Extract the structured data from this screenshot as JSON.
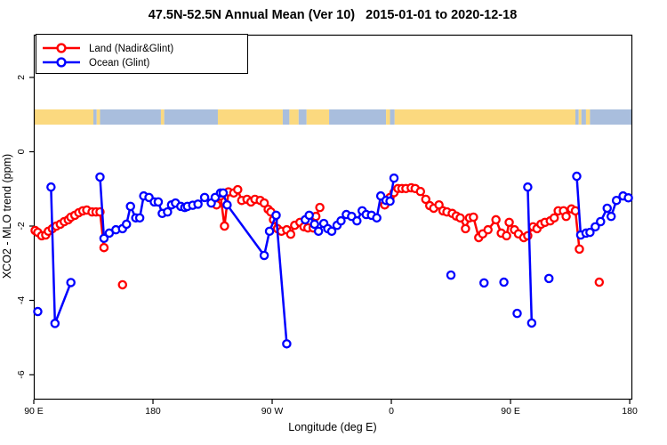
{
  "chart_data": {
    "type": "line",
    "title": "47.5N-52.5N Annual Mean (Ver 10)   2015-01-01 to 2020-12-18",
    "xlabel": "Longitude (deg E)",
    "ylabel": "XCO2 - MLO trend (ppm)",
    "grid": false,
    "x_axis": {
      "tick_values": [
        90,
        180,
        270,
        360,
        450,
        540
      ],
      "tick_labels": [
        "90 E",
        "180",
        "90 W",
        "0",
        "90 E",
        "180"
      ],
      "range": [
        90,
        541.3
      ],
      "note": "longitude axis wraps eastward: 90E to 180 to 90W to 0 to 90E to 180"
    },
    "y_axis": {
      "tick_values": [
        2,
        0,
        -2,
        -4,
        -6
      ],
      "tick_labels": [
        "2",
        "0",
        "-2",
        "-4",
        "-6"
      ],
      "range": [
        -6.65,
        3.15
      ]
    },
    "legend": {
      "position": "top-left",
      "items": [
        {
          "label": "Land (Nadir&Glint)",
          "color": "#ff0000"
        },
        {
          "label": "Ocean (Glint)",
          "color": "#0000ff"
        }
      ]
    },
    "map_band": {
      "value_top": 1.14,
      "value_bottom": 0.73,
      "land_color": "#fbd97f",
      "ocean_color": "#a9bedd",
      "segments": [
        [
          90,
          135,
          "land"
        ],
        [
          135,
          137.5,
          "ocean"
        ],
        [
          137.5,
          140,
          "land"
        ],
        [
          140,
          186,
          "ocean"
        ],
        [
          186,
          188.5,
          "land"
        ],
        [
          188.5,
          229,
          "ocean"
        ],
        [
          229,
          278,
          "land"
        ],
        [
          278,
          283,
          "ocean"
        ],
        [
          283,
          290,
          "land"
        ],
        [
          290,
          296,
          "ocean"
        ],
        [
          296,
          313,
          "land"
        ],
        [
          313,
          356,
          "ocean"
        ],
        [
          356,
          359,
          "land"
        ],
        [
          359,
          362.5,
          "ocean"
        ],
        [
          362.5,
          499,
          "land"
        ],
        [
          499,
          501.5,
          "ocean"
        ],
        [
          501.5,
          503.5,
          "land"
        ],
        [
          503.5,
          507,
          "ocean"
        ],
        [
          507,
          510,
          "land"
        ],
        [
          510,
          541.3,
          "ocean"
        ]
      ]
    },
    "series": [
      {
        "name": "Land (Nadir&Glint)",
        "color": "#ff0000",
        "segments": [
          [
            [
              91,
              -2.12
            ],
            [
              93,
              -2.17
            ],
            [
              96,
              -2.26
            ],
            [
              99,
              -2.24
            ],
            [
              101,
              -2.14
            ],
            [
              104,
              -2.07
            ],
            [
              107,
              -2.0
            ],
            [
              110,
              -1.95
            ],
            [
              113,
              -1.88
            ],
            [
              116,
              -1.83
            ],
            [
              118,
              -1.76
            ],
            [
              121,
              -1.71
            ],
            [
              124,
              -1.64
            ],
            [
              127,
              -1.59
            ],
            [
              130,
              -1.57
            ],
            [
              134,
              -1.62
            ],
            [
              137,
              -1.62
            ],
            [
              140,
              -1.62
            ],
            [
              143,
              -2.58
            ]
          ],
          [
            [
              228,
              -1.43
            ],
            [
              231,
              -1.19
            ],
            [
              234,
              -2.0
            ],
            [
              237,
              -1.08
            ],
            [
              241,
              -1.11
            ],
            [
              244,
              -1.02
            ],
            [
              247,
              -1.31
            ],
            [
              251,
              -1.28
            ],
            [
              254,
              -1.35
            ],
            [
              257,
              -1.28
            ],
            [
              261,
              -1.31
            ],
            [
              264,
              -1.38
            ],
            [
              267,
              -1.55
            ],
            [
              269,
              -1.62
            ],
            [
              271,
              -1.83
            ],
            [
              274,
              -2.07
            ],
            [
              277,
              -2.14
            ],
            [
              281,
              -2.1
            ],
            [
              284,
              -2.22
            ],
            [
              287,
              -1.98
            ],
            [
              291,
              -1.9
            ],
            [
              294,
              -2.02
            ],
            [
              297,
              -2.05
            ],
            [
              301,
              -2.05
            ],
            [
              303,
              -1.74
            ],
            [
              306,
              -1.5
            ]
          ],
          [
            [
              355,
              -1.43
            ],
            [
              359,
              -1.23
            ],
            [
              362,
              -1.1
            ],
            [
              365,
              -0.99
            ],
            [
              368,
              -0.99
            ],
            [
              371,
              -0.99
            ],
            [
              375,
              -0.97
            ],
            [
              378,
              -0.99
            ],
            [
              382,
              -1.07
            ],
            [
              386,
              -1.28
            ],
            [
              389,
              -1.45
            ],
            [
              392,
              -1.52
            ],
            [
              396,
              -1.43
            ],
            [
              399,
              -1.59
            ],
            [
              402,
              -1.62
            ],
            [
              406,
              -1.66
            ],
            [
              409,
              -1.73
            ],
            [
              412,
              -1.78
            ],
            [
              416,
              -2.07
            ],
            [
              419,
              -1.78
            ],
            [
              422,
              -1.76
            ],
            [
              426,
              -2.31
            ],
            [
              429,
              -2.21
            ],
            [
              433,
              -2.1
            ],
            [
              439,
              -1.83
            ],
            [
              443,
              -2.19
            ],
            [
              447,
              -2.26
            ],
            [
              449,
              -1.9
            ],
            [
              453,
              -2.1
            ],
            [
              456,
              -2.21
            ],
            [
              460,
              -2.31
            ],
            [
              463,
              -2.26
            ],
            [
              467,
              -2.02
            ],
            [
              470,
              -2.07
            ],
            [
              473,
              -1.95
            ],
            [
              476,
              -1.9
            ],
            [
              480,
              -1.86
            ],
            [
              483,
              -1.78
            ],
            [
              486,
              -1.59
            ],
            [
              490,
              -1.59
            ],
            [
              492,
              -1.74
            ],
            [
              496,
              -1.54
            ],
            [
              499,
              -1.59
            ],
            [
              502,
              -2.62
            ]
          ]
        ],
        "isolated_points": [
          [
            157,
            -3.58
          ],
          [
            517,
            -3.51
          ]
        ]
      },
      {
        "name": "Ocean (Glint)",
        "color": "#0000ff",
        "segments": [
          [
            [
              103,
              -0.95
            ],
            [
              106,
              -4.62
            ],
            [
              118,
              -3.52
            ]
          ],
          [
            [
              140,
              -0.68
            ],
            [
              143,
              -2.33
            ],
            [
              147,
              -2.19
            ],
            [
              152,
              -2.1
            ],
            [
              157,
              -2.07
            ],
            [
              160,
              -1.95
            ],
            [
              163,
              -1.47
            ],
            [
              167,
              -1.78
            ],
            [
              170,
              -1.78
            ],
            [
              173,
              -1.19
            ],
            [
              177,
              -1.23
            ],
            [
              181,
              -1.35
            ],
            [
              184,
              -1.35
            ],
            [
              187,
              -1.66
            ],
            [
              191,
              -1.62
            ],
            [
              194,
              -1.43
            ],
            [
              197,
              -1.38
            ],
            [
              201,
              -1.47
            ],
            [
              204,
              -1.5
            ],
            [
              206,
              -1.47
            ],
            [
              210,
              -1.44
            ],
            [
              214,
              -1.41
            ],
            [
              219,
              -1.23
            ],
            [
              224,
              -1.38
            ],
            [
              227,
              -1.23
            ],
            [
              231,
              -1.11
            ],
            [
              233,
              -1.11
            ],
            [
              236,
              -1.43
            ],
            [
              264,
              -2.79
            ],
            [
              268,
              -2.14
            ],
            [
              273,
              -1.71
            ],
            [
              281,
              -5.17
            ]
          ],
          [
            [
              295,
              -1.83
            ],
            [
              298,
              -1.71
            ],
            [
              302,
              -1.95
            ],
            [
              305,
              -2.14
            ],
            [
              309,
              -1.93
            ],
            [
              312,
              -2.07
            ],
            [
              315,
              -2.14
            ],
            [
              319,
              -1.98
            ],
            [
              322,
              -1.86
            ],
            [
              326,
              -1.69
            ],
            [
              330,
              -1.74
            ],
            [
              334,
              -1.86
            ],
            [
              338,
              -1.59
            ],
            [
              341,
              -1.69
            ],
            [
              345,
              -1.71
            ],
            [
              349,
              -1.78
            ],
            [
              352,
              -1.19
            ],
            [
              356,
              -1.31
            ],
            [
              359,
              -1.33
            ],
            [
              362,
              -0.71
            ]
          ],
          [
            [
              463,
              -0.95
            ],
            [
              466,
              -4.61
            ]
          ],
          [
            [
              500,
              -0.66
            ],
            [
              503,
              -2.24
            ],
            [
              507,
              -2.19
            ],
            [
              510,
              -2.17
            ],
            [
              514,
              -2.02
            ],
            [
              518,
              -1.88
            ],
            [
              523,
              -1.52
            ],
            [
              526,
              -1.74
            ],
            [
              530,
              -1.31
            ],
            [
              535,
              -1.19
            ],
            [
              539,
              -1.24
            ]
          ]
        ],
        "isolated_points": [
          [
            93,
            -4.3
          ],
          [
            405,
            -3.32
          ],
          [
            430,
            -3.53
          ],
          [
            445,
            -3.51
          ],
          [
            455,
            -4.35
          ],
          [
            479,
            -3.41
          ]
        ]
      }
    ]
  }
}
